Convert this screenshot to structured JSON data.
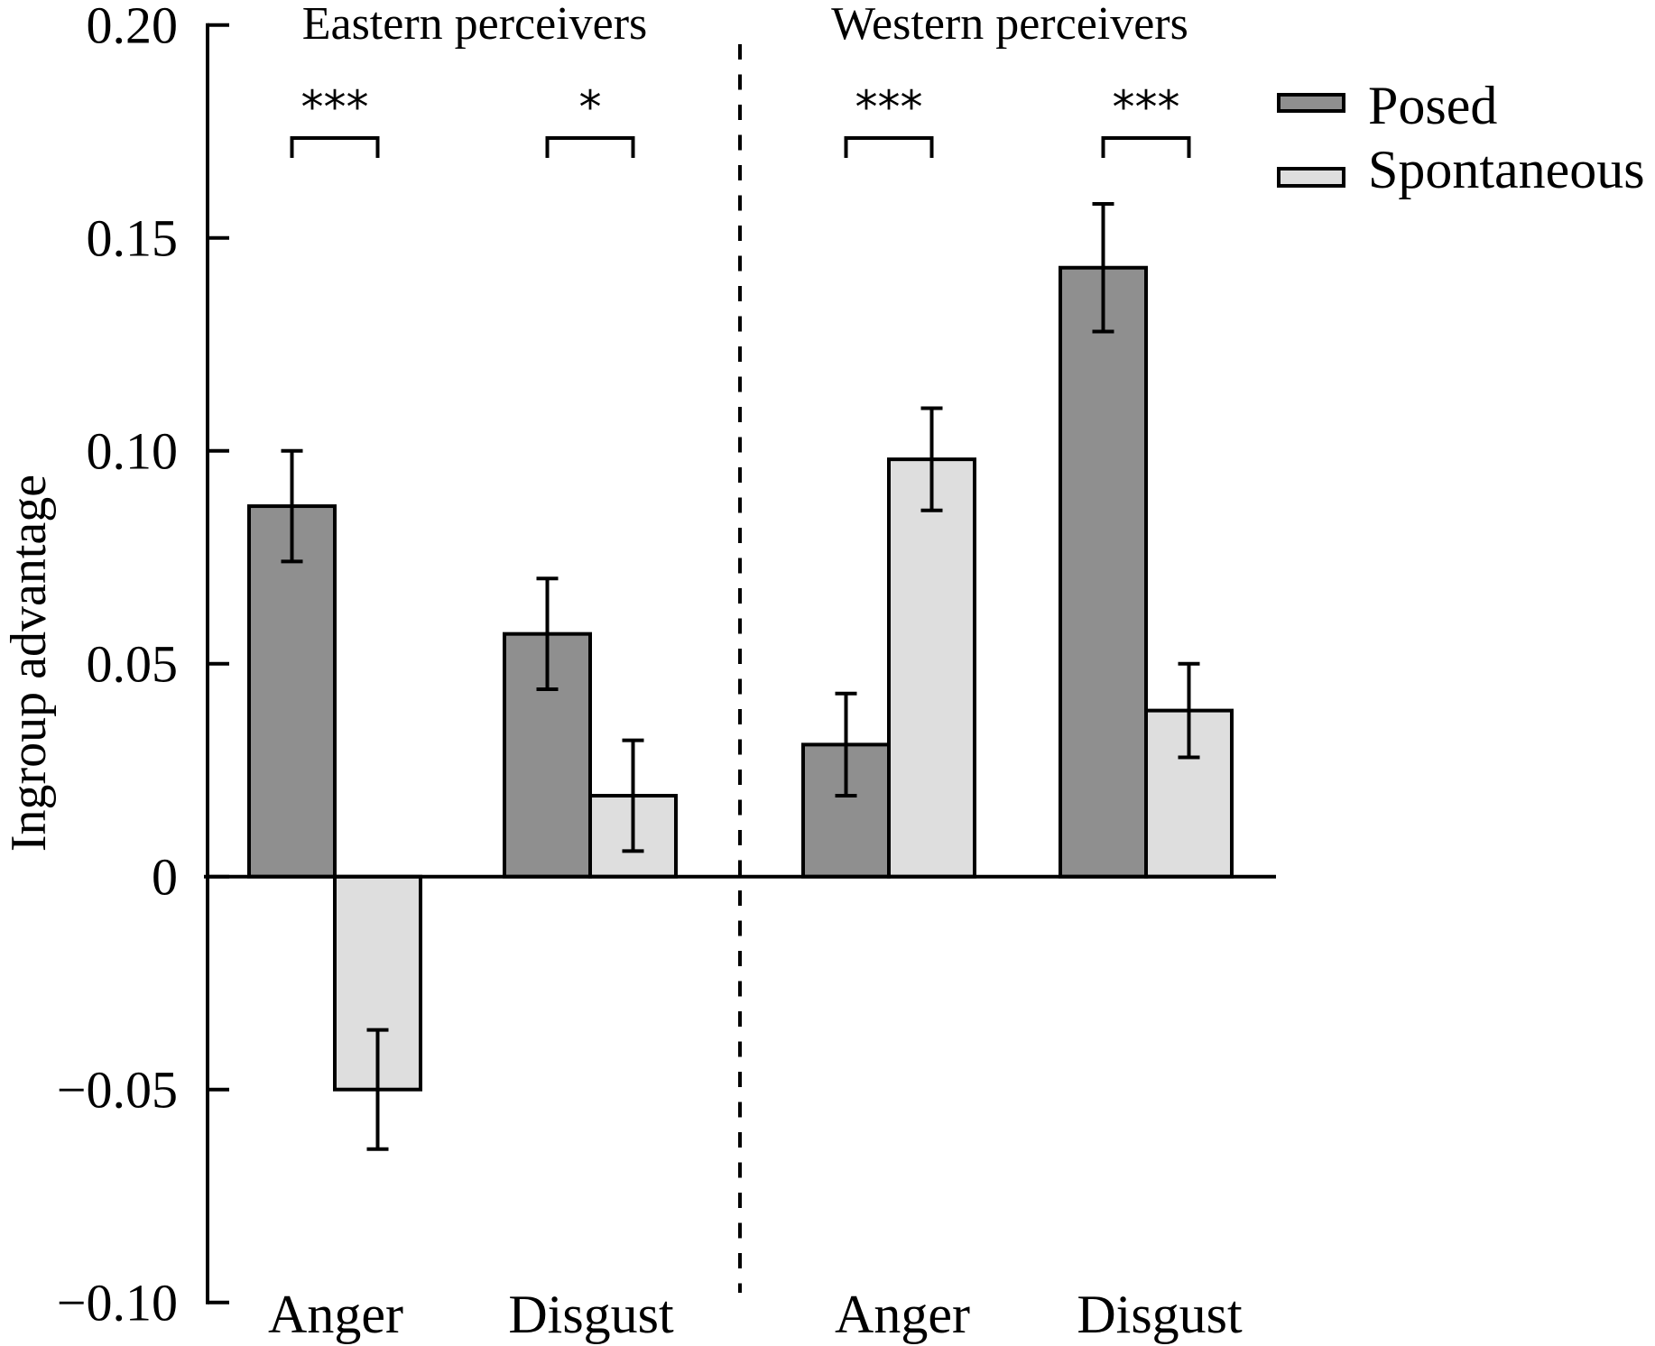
{
  "chart_data": {
    "type": "bar",
    "title": "",
    "xlabel": "",
    "ylabel": "Ingroup advantage",
    "ylim": [
      -0.1,
      0.2
    ],
    "yticks": [
      {
        "value": 0.2,
        "label": "0.20"
      },
      {
        "value": 0.15,
        "label": "0.15"
      },
      {
        "value": 0.1,
        "label": "0.10"
      },
      {
        "value": 0.05,
        "label": "0.05"
      },
      {
        "value": 0,
        "label": "0"
      },
      {
        "value": -0.05,
        "label": "−0.05"
      },
      {
        "value": -0.1,
        "label": "−0.10"
      }
    ],
    "grid": false,
    "legend_position": "top-right",
    "panels": [
      {
        "title": "Eastern perceivers",
        "categories": [
          "Anger",
          "Disgust"
        ]
      },
      {
        "title": "Western perceivers",
        "categories": [
          "Anger",
          "Disgust"
        ]
      }
    ],
    "categories": [
      "Anger",
      "Disgust",
      "Anger",
      "Disgust"
    ],
    "series": [
      {
        "name": "Posed",
        "color": "#8f8f8f",
        "values": [
          0.087,
          0.057,
          0.031,
          0.143
        ],
        "error_low": [
          0.074,
          0.044,
          0.019,
          0.128
        ],
        "error_high": [
          0.1,
          0.07,
          0.043,
          0.158
        ]
      },
      {
        "name": "Spontaneous",
        "color": "#dedede",
        "values": [
          -0.05,
          0.019,
          0.098,
          0.039
        ],
        "error_low": [
          -0.064,
          0.006,
          0.086,
          0.028
        ],
        "error_high": [
          -0.036,
          0.032,
          0.11,
          0.05
        ]
      }
    ],
    "significance": [
      "***",
      "*",
      "***",
      "***"
    ]
  }
}
